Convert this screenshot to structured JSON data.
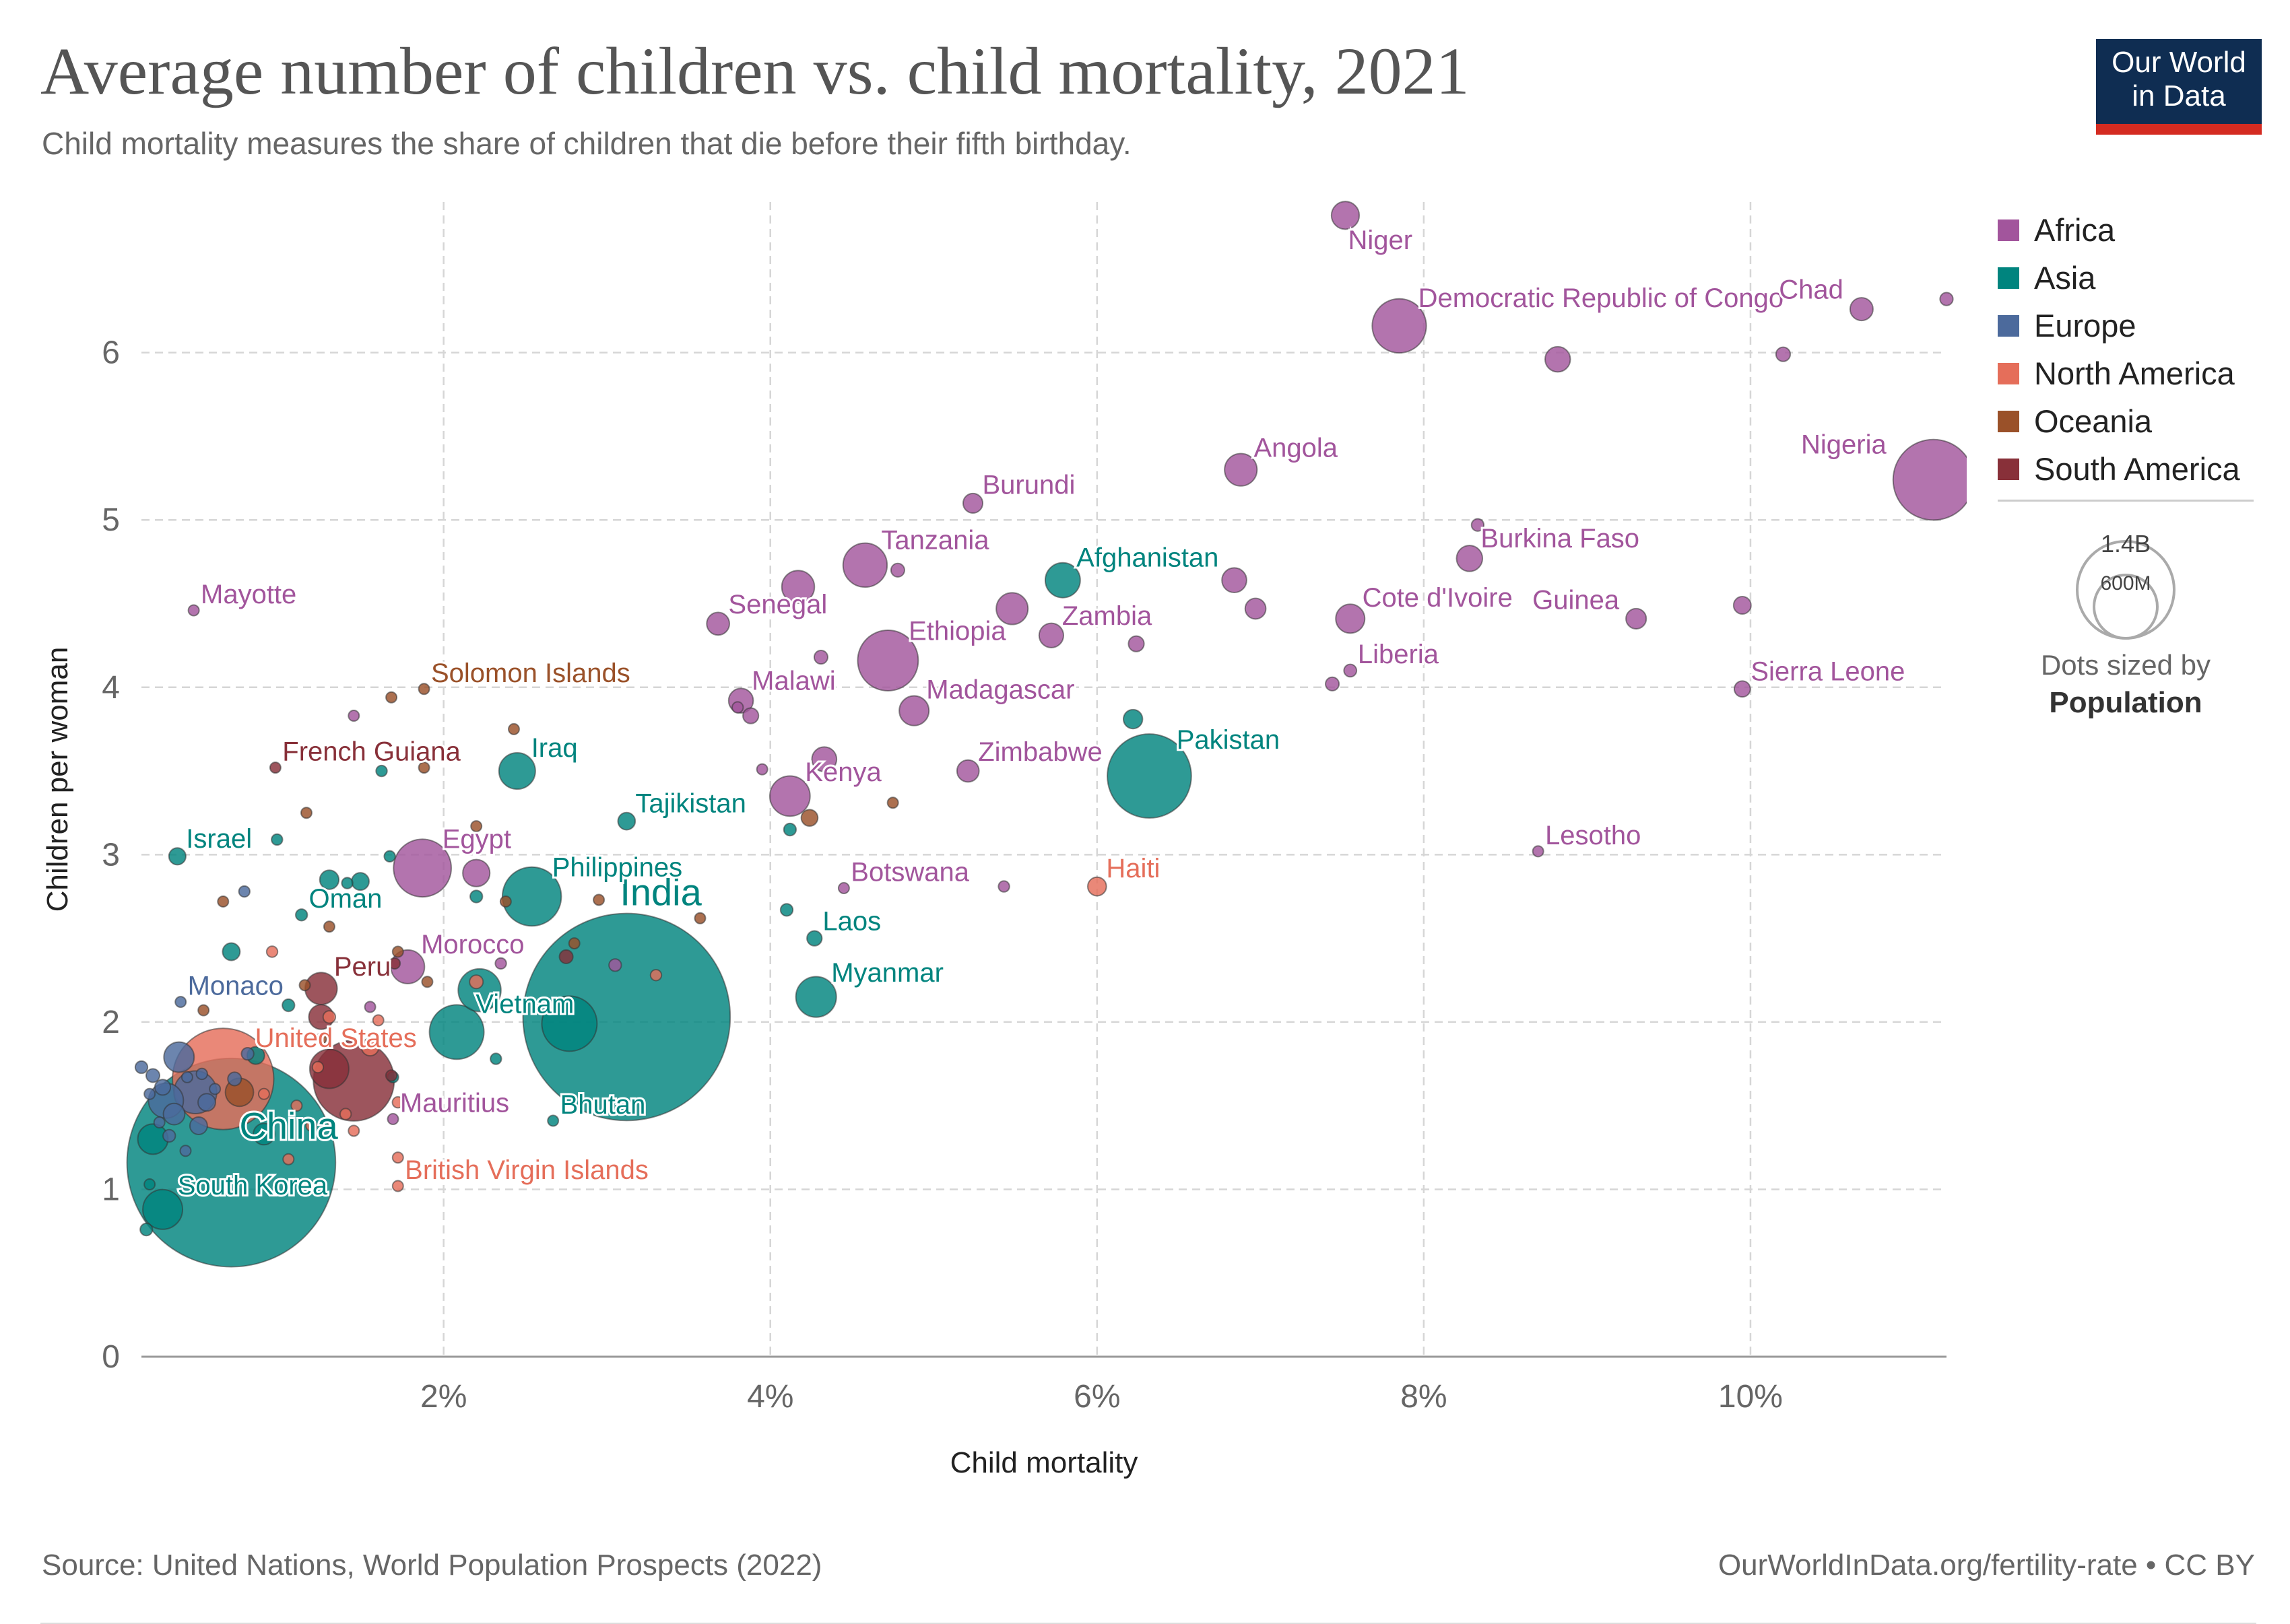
{
  "header": {
    "title": "Average number of children vs. child mortality, 2021",
    "subtitle": "Child mortality measures the share of children that die before their fifth birthday.",
    "logo_line1": "Our World",
    "logo_line2": "in Data"
  },
  "legend": {
    "items": [
      {
        "label": "Africa",
        "color": "#a2559c"
      },
      {
        "label": "Asia",
        "color": "#00847e"
      },
      {
        "label": "Europe",
        "color": "#4c6a9c"
      },
      {
        "label": "North America",
        "color": "#e56e5a"
      },
      {
        "label": "Oceania",
        "color": "#9a5129"
      },
      {
        "label": "South America",
        "color": "#883039"
      }
    ],
    "size_big_label": "1.4B",
    "size_small_label": "600M",
    "size_caption": "Dots sized by",
    "size_caption_bold": "Population"
  },
  "footer": {
    "source": "Source: United Nations, World Population Prospects (2022)",
    "credit": "OurWorldInData.org/fertility-rate • CC BY"
  },
  "chart_data": {
    "type": "scatter",
    "xlabel": "Child mortality",
    "ylabel": "Children per woman",
    "xlim": [
      0.15,
      11.2
    ],
    "ylim": [
      0,
      6.9
    ],
    "x_ticks": [
      2,
      4,
      6,
      8,
      10
    ],
    "x_tick_labels": [
      "2%",
      "4%",
      "6%",
      "8%",
      "10%"
    ],
    "y_ticks": [
      0,
      1,
      2,
      3,
      4,
      5,
      6
    ],
    "y_tick_labels": [
      "0",
      "1",
      "2",
      "3",
      "4",
      "5",
      "6"
    ],
    "grid": true,
    "legend_position": "right",
    "size_encoding": "population",
    "series": [
      {
        "name": "Africa",
        "color": "#a2559c",
        "points": [
          {
            "label": "Niger",
            "x": 7.52,
            "y": 6.82,
            "pop": 25.3
          },
          {
            "label": "Democratic Republic of Congo",
            "x": 7.85,
            "y": 6.16,
            "pop": 95.9
          },
          {
            "label": "Chad",
            "x": 10.68,
            "y": 6.26,
            "pop": 17.2
          },
          {
            "x": 11.2,
            "y": 6.32,
            "pop": 5.5
          },
          {
            "x": 8.82,
            "y": 5.96,
            "pop": 20.9
          },
          {
            "x": 10.2,
            "y": 5.99,
            "pop": 6.7
          },
          {
            "label": "Angola",
            "x": 6.88,
            "y": 5.3,
            "pop": 34.5
          },
          {
            "label": "Nigeria",
            "x": 11.12,
            "y": 5.24,
            "pop": 213
          },
          {
            "label": "Burundi",
            "x": 5.24,
            "y": 5.1,
            "pop": 12.6
          },
          {
            "label": "Burkina Faso",
            "x": 8.28,
            "y": 4.77,
            "pop": 22.1
          },
          {
            "x": 8.33,
            "y": 4.97,
            "pop": 5
          },
          {
            "label": "Tanzania",
            "x": 4.58,
            "y": 4.73,
            "pop": 63.6
          },
          {
            "x": 4.78,
            "y": 4.7,
            "pop": 6
          },
          {
            "x": 4.17,
            "y": 4.6,
            "pop": 35
          },
          {
            "x": 6.84,
            "y": 4.64,
            "pop": 20
          },
          {
            "x": 6.97,
            "y": 4.47,
            "pop": 14
          },
          {
            "label": "Senegal",
            "x": 3.68,
            "y": 4.38,
            "pop": 16.9
          },
          {
            "x": 5.48,
            "y": 4.47,
            "pop": 33
          },
          {
            "label": "Zambia",
            "x": 5.72,
            "y": 4.31,
            "pop": 19.5
          },
          {
            "x": 6.24,
            "y": 4.26,
            "pop": 8
          },
          {
            "label": "Ethiopia",
            "x": 4.72,
            "y": 4.16,
            "pop": 120.3
          },
          {
            "x": 4.31,
            "y": 4.18,
            "pop": 6
          },
          {
            "label": "Cote d'Ivoire",
            "x": 7.55,
            "y": 4.41,
            "pop": 27.5
          },
          {
            "label": "Guinea",
            "x": 9.3,
            "y": 4.41,
            "pop": 13.5
          },
          {
            "x": 9.95,
            "y": 4.49,
            "pop": 10
          },
          {
            "label": "Liberia",
            "x": 7.55,
            "y": 4.1,
            "pop": 5.2
          },
          {
            "x": 7.44,
            "y": 4.02,
            "pop": 6
          },
          {
            "label": "Sierra Leone",
            "x": 9.95,
            "y": 3.99,
            "pop": 8.4
          },
          {
            "label": "Mayotte",
            "x": 0.47,
            "y": 4.46,
            "pop": 0.3
          },
          {
            "x": 1.45,
            "y": 3.83,
            "pop": 2
          },
          {
            "label": "Malawi",
            "x": 3.82,
            "y": 3.92,
            "pop": 19.9
          },
          {
            "x": 3.88,
            "y": 3.83,
            "pop": 8
          },
          {
            "x": 3.8,
            "y": 3.88,
            "pop": 4
          },
          {
            "label": "Madagascar",
            "x": 4.88,
            "y": 3.86,
            "pop": 28.9
          },
          {
            "label": "Zimbabwe",
            "x": 5.21,
            "y": 3.5,
            "pop": 15.9
          },
          {
            "x": 3.95,
            "y": 3.51,
            "pop": 2
          },
          {
            "label": "Kenya",
            "x": 4.12,
            "y": 3.35,
            "pop": 53
          },
          {
            "x": 4.33,
            "y": 3.57,
            "pop": 20
          },
          {
            "label": "Lesotho",
            "x": 8.7,
            "y": 3.02,
            "pop": 2.3
          },
          {
            "label": "Egypt",
            "x": 1.87,
            "y": 2.92,
            "pop": 109.3
          },
          {
            "x": 2.2,
            "y": 2.89,
            "pop": 24
          },
          {
            "label": "Botswana",
            "x": 4.45,
            "y": 2.8,
            "pop": 2.6
          },
          {
            "x": 5.43,
            "y": 2.81,
            "pop": 4
          },
          {
            "label": "Morocco",
            "x": 1.78,
            "y": 2.33,
            "pop": 37.1
          },
          {
            "x": 2.35,
            "y": 2.35,
            "pop": 4
          },
          {
            "x": 1.55,
            "y": 2.09,
            "pop": 3
          },
          {
            "label": "Mauritius",
            "x": 1.69,
            "y": 1.42,
            "pop": 1.3
          },
          {
            "x": 3.05,
            "y": 2.34,
            "pop": 5
          }
        ]
      },
      {
        "name": "Asia",
        "color": "#00847e",
        "points": [
          {
            "label": "Afghanistan",
            "x": 5.79,
            "y": 4.64,
            "pop": 40.1
          },
          {
            "label": "Pakistan",
            "x": 6.32,
            "y": 3.47,
            "pop": 231.4
          },
          {
            "x": 6.22,
            "y": 3.81,
            "pop": 12
          },
          {
            "label": "Iraq",
            "x": 2.45,
            "y": 3.5,
            "pop": 43.5
          },
          {
            "x": 1.62,
            "y": 3.5,
            "pop": 4
          },
          {
            "label": "Tajikistan",
            "x": 3.12,
            "y": 3.2,
            "pop": 9.8
          },
          {
            "x": 4.12,
            "y": 3.15,
            "pop": 5
          },
          {
            "label": "Israel",
            "x": 0.37,
            "y": 2.99,
            "pop": 9.4
          },
          {
            "x": 0.98,
            "y": 3.09,
            "pop": 4
          },
          {
            "x": 1.67,
            "y": 2.99,
            "pop": 4
          },
          {
            "label": "Philippines",
            "x": 2.54,
            "y": 2.75,
            "pop": 113.9
          },
          {
            "x": 1.3,
            "y": 2.85,
            "pop": 12
          },
          {
            "x": 1.49,
            "y": 2.84,
            "pop": 10
          },
          {
            "x": 1.41,
            "y": 2.83,
            "pop": 4
          },
          {
            "x": 2.2,
            "y": 2.75,
            "pop": 5
          },
          {
            "label": "Oman",
            "x": 1.13,
            "y": 2.64,
            "pop": 4.5
          },
          {
            "label": "Laos",
            "x": 4.27,
            "y": 2.5,
            "pop": 7.4
          },
          {
            "x": 4.1,
            "y": 2.67,
            "pop": 5
          },
          {
            "x": 0.7,
            "y": 2.42,
            "pop": 10
          },
          {
            "label": "India",
            "x": 3.12,
            "y": 2.03,
            "pop": 1407.6
          },
          {
            "x": 2.22,
            "y": 2.19,
            "pop": 60
          },
          {
            "label": "Myanmar",
            "x": 4.28,
            "y": 2.15,
            "pop": 53.8
          },
          {
            "label": "Vietnam",
            "x": 2.08,
            "y": 1.94,
            "pop": 97.5
          },
          {
            "x": 2.77,
            "y": 1.99,
            "pop": 100
          },
          {
            "label": "Bhutan",
            "x": 2.67,
            "y": 1.41,
            "pop": 0.8
          },
          {
            "label": "China",
            "x": 0.7,
            "y": 1.16,
            "pop": 1425.9
          },
          {
            "label": "South Korea",
            "x": 0.28,
            "y": 0.88,
            "pop": 51.8
          },
          {
            "x": 0.22,
            "y": 1.3,
            "pop": 30
          },
          {
            "x": 0.9,
            "y": 1.33,
            "pop": 15
          },
          {
            "x": 0.2,
            "y": 1.03,
            "pop": 3
          },
          {
            "x": 0.18,
            "y": 0.76,
            "pop": 5
          },
          {
            "x": 0.85,
            "y": 1.8,
            "pop": 10
          },
          {
            "x": 1.69,
            "y": 1.67,
            "pop": 4
          },
          {
            "x": 2.32,
            "y": 1.78,
            "pop": 4
          },
          {
            "x": 1.05,
            "y": 2.1,
            "pop": 5
          }
        ]
      },
      {
        "name": "Europe",
        "color": "#4c6a9c",
        "points": [
          {
            "label": "Monaco",
            "x": 0.39,
            "y": 2.12,
            "pop": 0.04
          },
          {
            "x": 0.78,
            "y": 2.78,
            "pop": 4
          },
          {
            "x": 0.38,
            "y": 1.79,
            "pop": 30
          },
          {
            "x": 0.48,
            "y": 1.58,
            "pop": 60
          },
          {
            "x": 0.3,
            "y": 1.53,
            "pop": 40
          },
          {
            "x": 0.5,
            "y": 1.38,
            "pop": 10
          },
          {
            "x": 0.28,
            "y": 1.61,
            "pop": 8
          },
          {
            "x": 0.22,
            "y": 1.68,
            "pop": 6
          },
          {
            "x": 0.35,
            "y": 1.45,
            "pop": 15
          },
          {
            "x": 0.15,
            "y": 1.73,
            "pop": 5
          },
          {
            "x": 0.52,
            "y": 1.69,
            "pop": 4
          },
          {
            "x": 0.26,
            "y": 1.4,
            "pop": 3
          },
          {
            "x": 0.2,
            "y": 1.57,
            "pop": 3
          },
          {
            "x": 0.55,
            "y": 1.52,
            "pop": 10
          },
          {
            "x": 0.43,
            "y": 1.67,
            "pop": 3
          },
          {
            "x": 0.32,
            "y": 1.32,
            "pop": 5
          },
          {
            "x": 0.6,
            "y": 1.6,
            "pop": 3
          },
          {
            "x": 0.42,
            "y": 1.23,
            "pop": 3
          },
          {
            "x": 0.8,
            "y": 1.81,
            "pop": 5
          },
          {
            "x": 0.72,
            "y": 1.66,
            "pop": 6
          }
        ]
      },
      {
        "name": "North America",
        "color": "#e56e5a",
        "points": [
          {
            "label": "United States",
            "x": 0.65,
            "y": 1.66,
            "pop": 336.5
          },
          {
            "label": "Haiti",
            "x": 6.0,
            "y": 2.81,
            "pop": 11.4
          },
          {
            "label": "British Virgin Islands",
            "x": 1.72,
            "y": 1.02,
            "pop": 0.03
          },
          {
            "x": 2.2,
            "y": 2.24,
            "pop": 6
          },
          {
            "x": 3.3,
            "y": 2.28,
            "pop": 4
          },
          {
            "x": 1.55,
            "y": 1.85,
            "pop": 10
          },
          {
            "x": 1.3,
            "y": 2.03,
            "pop": 5
          },
          {
            "x": 1.23,
            "y": 1.73,
            "pop": 4
          },
          {
            "x": 1.72,
            "y": 1.52,
            "pop": 4
          },
          {
            "x": 1.1,
            "y": 1.5,
            "pop": 3
          },
          {
            "x": 1.4,
            "y": 1.45,
            "pop": 4
          },
          {
            "x": 0.9,
            "y": 1.57,
            "pop": 3
          },
          {
            "x": 0.95,
            "y": 2.42,
            "pop": 4
          },
          {
            "x": 1.6,
            "y": 2.01,
            "pop": 3
          },
          {
            "x": 1.45,
            "y": 1.35,
            "pop": 3
          },
          {
            "x": 1.72,
            "y": 1.19,
            "pop": 3
          },
          {
            "x": 1.05,
            "y": 1.18,
            "pop": 3
          },
          {
            "x": 1.19,
            "y": 1.38,
            "pop": 3
          }
        ]
      },
      {
        "name": "Oceania",
        "color": "#9a5129",
        "points": [
          {
            "label": "Solomon Islands",
            "x": 1.88,
            "y": 3.99,
            "pop": 0.7
          },
          {
            "x": 1.68,
            "y": 3.94,
            "pop": 0.3
          },
          {
            "x": 2.43,
            "y": 3.75,
            "pop": 1
          },
          {
            "x": 1.88,
            "y": 3.52,
            "pop": 0.3
          },
          {
            "x": 1.16,
            "y": 3.25,
            "pop": 0.3
          },
          {
            "x": 2.2,
            "y": 3.17,
            "pop": 0.3
          },
          {
            "x": 4.24,
            "y": 3.22,
            "pop": 9
          },
          {
            "x": 4.75,
            "y": 3.31,
            "pop": 1
          },
          {
            "x": 0.65,
            "y": 2.72,
            "pop": 0.3
          },
          {
            "x": 2.38,
            "y": 2.72,
            "pop": 0.3
          },
          {
            "x": 2.95,
            "y": 2.73,
            "pop": 0.3
          },
          {
            "x": 3.57,
            "y": 2.62,
            "pop": 0.3
          },
          {
            "x": 1.3,
            "y": 2.57,
            "pop": 0.3
          },
          {
            "x": 1.72,
            "y": 2.42,
            "pop": 0.3
          },
          {
            "x": 2.8,
            "y": 2.47,
            "pop": 0.3
          },
          {
            "x": 1.9,
            "y": 2.24,
            "pop": 0.3
          },
          {
            "x": 0.53,
            "y": 2.07,
            "pop": 0.3
          },
          {
            "x": 1.15,
            "y": 2.22,
            "pop": 0.3
          },
          {
            "x": 1.25,
            "y": 1.9,
            "pop": 0.3
          },
          {
            "x": 0.75,
            "y": 1.58,
            "pop": 26
          }
        ]
      },
      {
        "name": "South America",
        "color": "#883039",
        "points": [
          {
            "label": "French Guiana",
            "x": 0.97,
            "y": 3.52,
            "pop": 0.3
          },
          {
            "label": "Peru",
            "x": 1.25,
            "y": 2.2,
            "pop": 33.7
          },
          {
            "x": 1.45,
            "y": 1.65,
            "pop": 214.3
          },
          {
            "x": 1.7,
            "y": 2.35,
            "pop": 4
          },
          {
            "x": 1.25,
            "y": 2.03,
            "pop": 20
          },
          {
            "x": 1.3,
            "y": 1.72,
            "pop": 50
          },
          {
            "x": 2.75,
            "y": 2.39,
            "pop": 6
          },
          {
            "x": 1.68,
            "y": 1.68,
            "pop": 4
          }
        ]
      }
    ]
  }
}
